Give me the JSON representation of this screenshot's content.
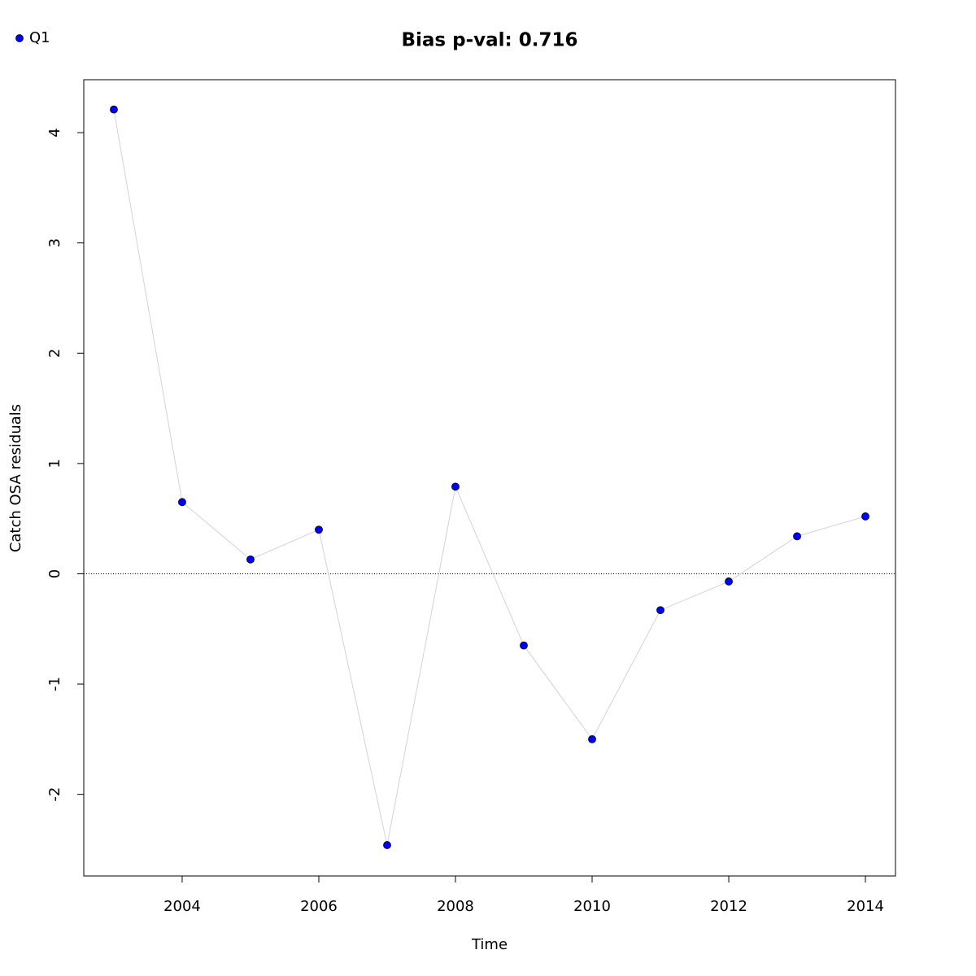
{
  "chart_data": {
    "type": "line",
    "title": "Bias p-val: 0.716",
    "title_color": "#228b22",
    "xlabel": "Time",
    "ylabel": "Catch OSA residuals",
    "x": [
      2003,
      2004,
      2005,
      2006,
      2007,
      2008,
      2009,
      2010,
      2011,
      2012,
      2013,
      2014
    ],
    "series": [
      {
        "name": "Q1",
        "color": "#0000ff",
        "line_color": "#d3d3d3",
        "values": [
          4.21,
          0.65,
          0.13,
          0.4,
          -2.46,
          0.79,
          -0.65,
          -1.5,
          -0.33,
          -0.07,
          0.34,
          0.52
        ]
      }
    ],
    "xlim": [
      2002.56,
      2014.44
    ],
    "xticks": [
      2004,
      2006,
      2008,
      2010,
      2012,
      2014
    ],
    "ylim": [
      -2.74,
      4.48
    ],
    "yticks": [
      -2,
      -1,
      0,
      1,
      2,
      3,
      4
    ],
    "hline": 0,
    "legend": "top-left",
    "grid": false
  }
}
